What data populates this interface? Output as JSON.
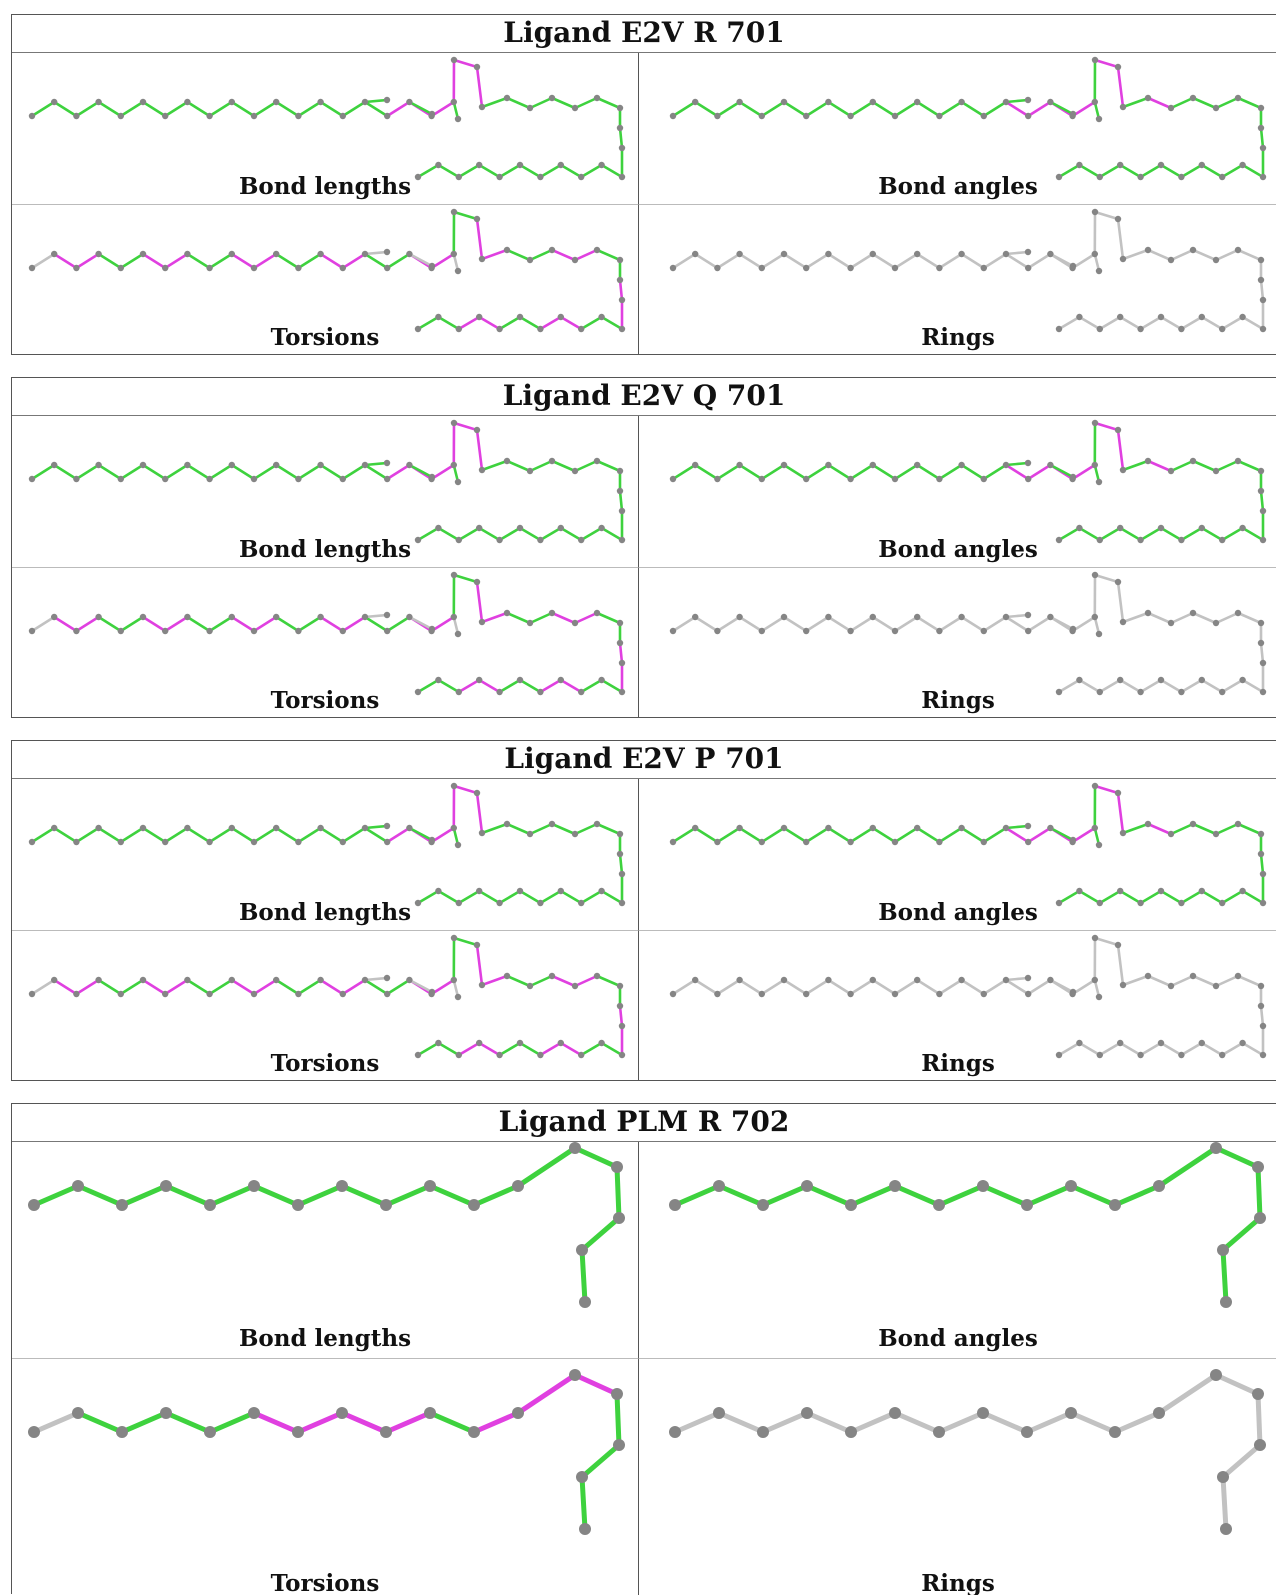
{
  "colors": {
    "green": "#3ed23e",
    "magenta": "#e040e0",
    "gray": "#c2c2c2",
    "atom": "#858585"
  },
  "blocks": [
    {
      "title": "Ligand E2V R 701",
      "variant": "e2v",
      "panels": [
        {
          "label": "Bond lengths",
          "mode": "bl"
        },
        {
          "label": "Bond angles",
          "mode": "ba"
        },
        {
          "label": "Torsions",
          "mode": "tor"
        },
        {
          "label": "Rings",
          "mode": "ring"
        }
      ]
    },
    {
      "title": "Ligand E2V Q 701",
      "variant": "e2v",
      "panels": [
        {
          "label": "Bond lengths",
          "mode": "bl"
        },
        {
          "label": "Bond angles",
          "mode": "ba"
        },
        {
          "label": "Torsions",
          "mode": "tor"
        },
        {
          "label": "Rings",
          "mode": "ring"
        }
      ]
    },
    {
      "title": "Ligand E2V P 701",
      "variant": "e2v",
      "panels": [
        {
          "label": "Bond lengths",
          "mode": "bl"
        },
        {
          "label": "Bond angles",
          "mode": "ba"
        },
        {
          "label": "Torsions",
          "mode": "tor"
        },
        {
          "label": "Rings",
          "mode": "ring"
        }
      ]
    },
    {
      "title": "Ligand PLM R 702",
      "variant": "plm",
      "panels": [
        {
          "label": "Bond lengths",
          "mode": "bl"
        },
        {
          "label": "Bond angles",
          "mode": "ba"
        },
        {
          "label": "Torsions",
          "mode": "tor"
        },
        {
          "label": "Rings",
          "mode": "ring"
        }
      ]
    }
  ]
}
